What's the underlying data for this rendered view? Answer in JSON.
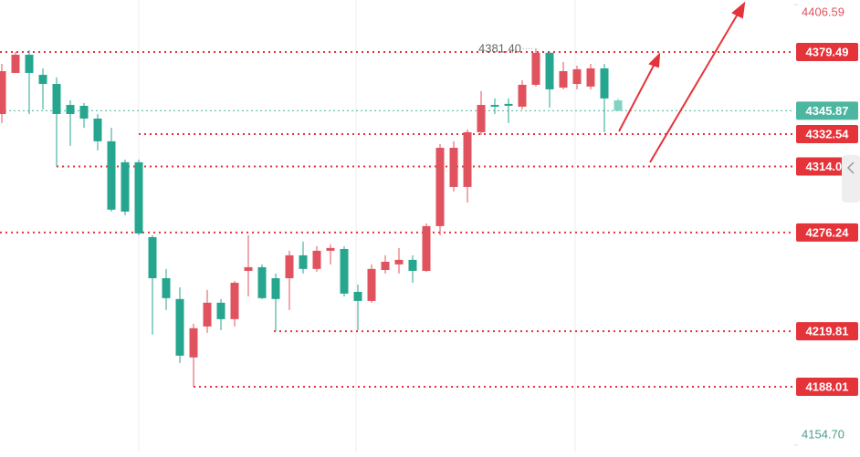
{
  "chart_data": {
    "type": "candlestick",
    "up_color": "#e0525e",
    "down_color": "#26a68f",
    "ylim": [
      4153.6,
      4409.2
    ],
    "yticks": [
      {
        "value": 4406.59,
        "label": "4406.59"
      },
      {
        "value": 4154.7,
        "label": "4154.70"
      }
    ],
    "open": [
      4344.0,
      4367.5,
      4377.9,
      4366.4,
      4361.2,
      4349.2,
      4348.7,
      4341.4,
      4328.4,
      4316.4,
      4316.4,
      4273.6,
      4250.1,
      4238.2,
      4204.8,
      4222.5,
      4236.1,
      4226.7,
      4254.3,
      4256.4,
      4250.1,
      4250.1,
      4263.2,
      4255.4,
      4265.8,
      4266.8,
      4242.3,
      4237.1,
      4254.8,
      4258.0,
      4260.6,
      4254.3,
      4279.9,
      4302.3,
      4302.3,
      4333.6,
      4349.2,
      4349.8,
      4348.2,
      4360.7,
      4379.0,
      4359.1,
      4361.2,
      4359.7,
      4370.1,
      4351.8
    ],
    "high": [
      4372.7,
      4379.5,
      4380.5,
      4370.1,
      4364.9,
      4351.8,
      4350.3,
      4344.0,
      4336.2,
      4317.9,
      4317.9,
      4274.7,
      4255.4,
      4244.9,
      4224.1,
      4243.4,
      4238.2,
      4248.6,
      4274.7,
      4258.0,
      4252.8,
      4265.8,
      4271.0,
      4268.4,
      4269.4,
      4268.4,
      4246.5,
      4258.0,
      4263.2,
      4267.4,
      4263.2,
      4281.4,
      4326.8,
      4328.4,
      4335.2,
      4357.1,
      4352.9,
      4352.9,
      4363.3,
      4381.4,
      4379.5,
      4373.7,
      4371.7,
      4372.7,
      4372.7,
      4352.9
    ],
    "low": [
      4338.8,
      4367.5,
      4344.0,
      4346.6,
      4314.01,
      4325.8,
      4336.2,
      4323.2,
      4288.2,
      4286.1,
      4274.7,
      4217.8,
      4231.9,
      4201.6,
      4188.01,
      4218.9,
      4220.4,
      4222.5,
      4239.7,
      4238.2,
      4219.81,
      4231.9,
      4252.8,
      4253.8,
      4258.0,
      4239.7,
      4220.4,
      4236.1,
      4252.8,
      4252.8,
      4247.5,
      4253.8,
      4274.7,
      4299.7,
      4293.4,
      4332.0,
      4344.0,
      4338.8,
      4346.6,
      4359.7,
      4347.7,
      4358.1,
      4358.1,
      4358.1,
      4333.6,
      4345.6
    ],
    "close": [
      4368.5,
      4377.9,
      4367.5,
      4361.2,
      4344.0,
      4344.0,
      4341.4,
      4328.4,
      4289.3,
      4288.2,
      4275.7,
      4250.1,
      4238.7,
      4205.8,
      4221.5,
      4236.1,
      4226.7,
      4247.5,
      4256.4,
      4238.7,
      4238.2,
      4263.2,
      4255.4,
      4265.8,
      4267.4,
      4241.3,
      4237.1,
      4255.4,
      4259.5,
      4260.6,
      4254.3,
      4279.9,
      4324.7,
      4324.7,
      4333.6,
      4349.2,
      4348.2,
      4348.7,
      4360.7,
      4379.0,
      4358.1,
      4368.5,
      4369.6,
      4370.1,
      4352.9,
      4345.87
    ],
    "high_label": {
      "value": 4381.4,
      "label": "4381.40"
    },
    "levels": [
      4379.49,
      4332.54,
      4314.01,
      4276.24,
      4219.81,
      4188.01
    ],
    "level_color": "#e5333a",
    "last_price": 4345.87,
    "last_color": "#4db6a0"
  }
}
